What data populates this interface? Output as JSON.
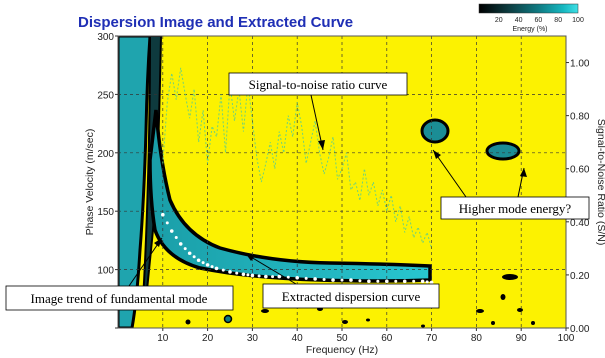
{
  "chart_data": {
    "type": "heatmap",
    "title": "Dispersion Image and Extracted Curve",
    "xlabel": "Frequency (Hz)",
    "ylabel": "Phase Velocity (m/sec)",
    "y2label": "Signal-to-Noise Ratio (S/N)",
    "xlim": [
      0,
      100
    ],
    "ylim": [
      50,
      300
    ],
    "y2lim": [
      0.0,
      1.1
    ],
    "x_ticks": [
      10,
      20,
      30,
      40,
      50,
      60,
      70,
      80,
      90,
      100
    ],
    "y_ticks": [
      50,
      100,
      150,
      200,
      250,
      300
    ],
    "y_tick_labels": [
      "",
      "100",
      "150",
      "200",
      "250",
      "300"
    ],
    "y2_ticks": [
      0.0,
      0.2,
      0.4,
      0.6,
      0.8,
      1.0
    ],
    "y2_tick_labels": [
      "0.00",
      "0.20",
      "0.40",
      "0.60",
      "0.80",
      "1.00"
    ],
    "grid": true,
    "colorbar": {
      "label": "Energy (%)",
      "ticks": [
        20,
        40,
        60,
        80,
        100
      ],
      "colors": [
        "#000000",
        "#0d3c40",
        "#0f7a82",
        "#16b7c0",
        "#3fe0e6"
      ]
    },
    "colors": {
      "background": "#fcf201",
      "energy_high": "#1fb1bb",
      "energy_edge": "#000000",
      "extracted_curve": "#ffffff",
      "snr_curve": "#6fd27a",
      "title": "#1f2fb5"
    },
    "series": [
      {
        "name": "Extracted dispersion curve",
        "x": [
          10,
          12,
          14,
          16,
          18,
          20,
          22,
          25,
          28,
          30,
          33,
          36,
          40,
          44,
          48,
          52,
          56,
          60,
          64,
          68,
          70
        ],
        "y": [
          147,
          133,
          122,
          114,
          108,
          104,
          101,
          98,
          96,
          95,
          94,
          94,
          93,
          92,
          91,
          91,
          90,
          90,
          90,
          90,
          89
        ]
      },
      {
        "name": "Signal-to-noise ratio curve",
        "x": [
          10,
          11,
          12,
          13,
          14,
          15,
          16,
          17,
          18,
          19,
          20,
          21,
          22,
          23,
          24,
          25,
          26,
          27,
          28,
          29,
          30,
          31,
          32,
          33,
          34,
          35,
          36,
          37,
          38,
          39,
          40,
          41,
          42,
          43,
          44,
          45,
          46,
          47,
          48,
          49,
          50,
          51,
          52,
          53,
          54,
          55,
          56,
          57,
          58,
          59,
          60,
          61,
          62,
          63,
          64,
          65,
          66,
          67,
          68,
          69,
          70
        ],
        "y": [
          0.62,
          0.85,
          0.96,
          0.86,
          0.98,
          0.88,
          0.79,
          0.9,
          0.7,
          0.82,
          0.62,
          0.76,
          0.72,
          0.88,
          0.66,
          0.92,
          0.78,
          0.9,
          0.74,
          0.92,
          0.78,
          0.64,
          0.55,
          0.62,
          0.7,
          0.6,
          0.74,
          0.66,
          0.8,
          0.72,
          0.85,
          0.76,
          0.62,
          0.7,
          0.78,
          0.66,
          0.58,
          0.64,
          0.72,
          0.56,
          0.6,
          0.66,
          0.52,
          0.55,
          0.48,
          0.6,
          0.5,
          0.55,
          0.46,
          0.52,
          0.44,
          0.5,
          0.4,
          0.46,
          0.36,
          0.42,
          0.34,
          0.38,
          0.32,
          0.36,
          0.3
        ]
      }
    ],
    "annotations": [
      {
        "text": "Signal-to-noise ratio curve",
        "arrow_to": [
          36,
          175
        ]
      },
      {
        "text": "Higher mode energy?",
        "arrow_to": [
          [
            73,
            195
          ],
          [
            86,
            178
          ]
        ]
      },
      {
        "text": "Image trend of fundamental mode",
        "arrow_to": [
          14,
          120
        ]
      },
      {
        "text": "Extracted dispersion curve",
        "arrow_to": [
          24,
          98
        ]
      }
    ]
  }
}
